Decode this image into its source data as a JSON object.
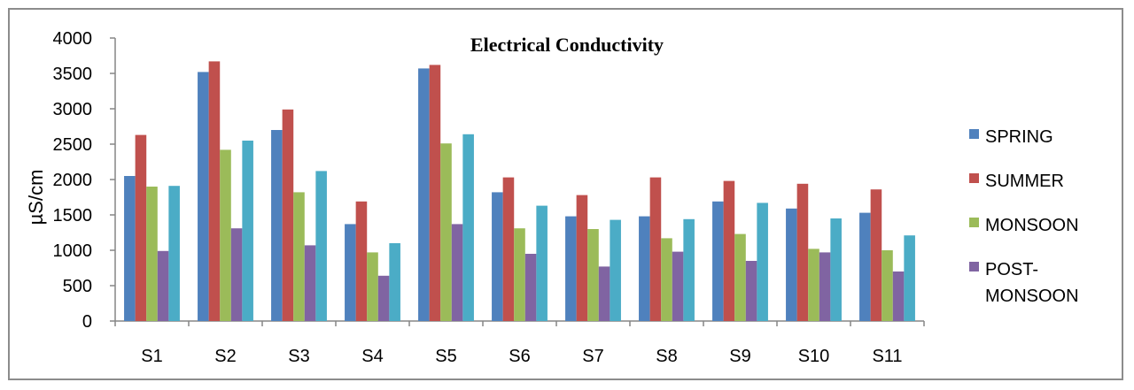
{
  "chart_data": {
    "type": "bar",
    "title": "Electrical Conductivity",
    "xlabel": "",
    "ylabel": "µS/cm",
    "ylim": [
      0,
      4000
    ],
    "yticks": [
      0,
      500,
      1000,
      1500,
      2000,
      2500,
      3000,
      3500,
      4000
    ],
    "grid": false,
    "legend_position": "right",
    "categories": [
      "S1",
      "S2",
      "S3",
      "S4",
      "S5",
      "S6",
      "S7",
      "S8",
      "S9",
      "S10",
      "S11"
    ],
    "series": [
      {
        "name": "SPRING",
        "color": "#4f81bd",
        "in_legend": true,
        "values": [
          2050,
          3520,
          2700,
          1370,
          3570,
          1820,
          1480,
          1480,
          1690,
          1590,
          1530
        ]
      },
      {
        "name": "SUMMER",
        "color": "#c0504d",
        "in_legend": true,
        "values": [
          2630,
          3670,
          2990,
          1690,
          3620,
          2030,
          1780,
          2030,
          1980,
          1940,
          1860
        ]
      },
      {
        "name": "MONSOON",
        "color": "#9bbb59",
        "in_legend": true,
        "values": [
          1900,
          2420,
          1820,
          970,
          2510,
          1310,
          1300,
          1170,
          1230,
          1020,
          1000
        ]
      },
      {
        "name": "POST-MONSOON",
        "legend_lines": [
          "POST-",
          "MONSOON"
        ],
        "color": "#8064a2",
        "in_legend": true,
        "values": [
          990,
          1310,
          1070,
          640,
          1370,
          950,
          770,
          980,
          850,
          970,
          700
        ]
      },
      {
        "color": "#4bacc6",
        "in_legend": false,
        "values": [
          1910,
          2550,
          2120,
          1100,
          2640,
          1630,
          1430,
          1440,
          1670,
          1450,
          1210
        ]
      }
    ]
  }
}
